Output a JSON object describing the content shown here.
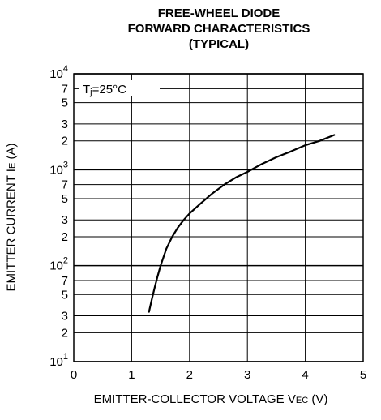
{
  "chart_data": {
    "type": "line",
    "title_lines": [
      "FREE-WHEEL DIODE",
      "FORWARD CHARACTERISTICS",
      "(TYPICAL)"
    ],
    "annotation": {
      "prefix": "T",
      "sub": "j",
      "suffix": "=25°C"
    },
    "xlabel": {
      "main": "EMITTER-COLLECTOR VOLTAGE V",
      "sub": "EC",
      "unit": " (V)"
    },
    "ylabel": {
      "main": "EMITTER CURRENT I",
      "sub": "E",
      "unit": " (A)"
    },
    "x_scale": "linear",
    "y_scale": "log",
    "xlim": [
      0,
      5
    ],
    "ylim": [
      10,
      10000
    ],
    "grid": true,
    "x_ticks": [
      0,
      1,
      2,
      3,
      4,
      5
    ],
    "y_ticks": [
      {
        "value": 10,
        "base": "10",
        "exp": "1"
      },
      {
        "value": 20,
        "label": "2"
      },
      {
        "value": 30,
        "label": "3"
      },
      {
        "value": 50,
        "label": "5"
      },
      {
        "value": 70,
        "label": "7"
      },
      {
        "value": 100,
        "base": "10",
        "exp": "2"
      },
      {
        "value": 200,
        "label": "2"
      },
      {
        "value": 300,
        "label": "3"
      },
      {
        "value": 500,
        "label": "5"
      },
      {
        "value": 700,
        "label": "7"
      },
      {
        "value": 1000,
        "base": "10",
        "exp": "3"
      },
      {
        "value": 2000,
        "label": "2"
      },
      {
        "value": 3000,
        "label": "3"
      },
      {
        "value": 5000,
        "label": "5"
      },
      {
        "value": 7000,
        "label": "7"
      },
      {
        "value": 10000,
        "base": "10",
        "exp": "4"
      }
    ],
    "series": [
      {
        "x": [
          1.3,
          1.35,
          1.4,
          1.45,
          1.5,
          1.6,
          1.7,
          1.8,
          1.9,
          2.0,
          2.2,
          2.4,
          2.6,
          2.8,
          3.0,
          3.25,
          3.5,
          3.75,
          4.0,
          4.25,
          4.5
        ],
        "y": [
          33,
          45,
          60,
          78,
          100,
          150,
          200,
          250,
          300,
          350,
          450,
          570,
          700,
          830,
          950,
          1150,
          1350,
          1550,
          1800,
          2000,
          2300
        ]
      }
    ]
  }
}
